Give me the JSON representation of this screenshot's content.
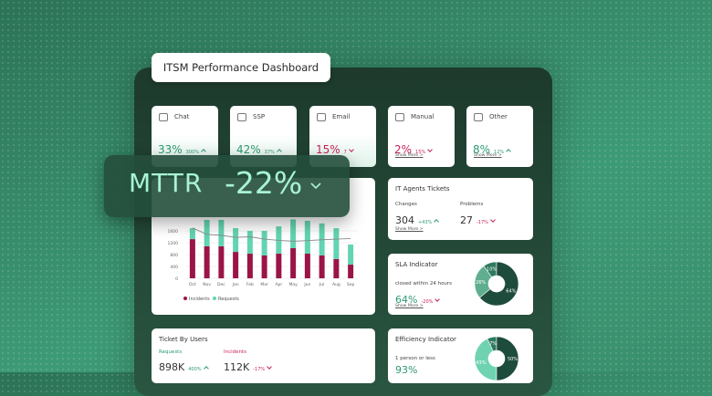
{
  "header": {
    "title": "ITSM Performance Dashboard"
  },
  "channels": [
    {
      "label": "Chat",
      "value": "33%",
      "delta": "300%",
      "trend": "up"
    },
    {
      "label": "SSP",
      "value": "42%",
      "delta": "37%",
      "trend": "up"
    },
    {
      "label": "Email",
      "value": "15%",
      "delta": "7",
      "trend": "down"
    },
    {
      "label": "Manual",
      "value": "2%",
      "delta": "15%",
      "trend": "down",
      "more": "Show More >"
    },
    {
      "label": "Other",
      "value": "8%",
      "delta": "12%",
      "trend": "up",
      "more": "Show More >"
    }
  ],
  "mttr": {
    "label": "MTTR",
    "value": "-22%"
  },
  "it_agents": {
    "title": "IT Agents Tickets",
    "items": [
      {
        "label": "Changes",
        "value": "304",
        "delta": "+43%",
        "trend": "up"
      },
      {
        "label": "Problems",
        "value": "27",
        "delta": "-17%",
        "trend": "down"
      }
    ],
    "more": "Show More >"
  },
  "sla": {
    "title": "SLA Indicator",
    "label": "closed within 24 hours",
    "value": "64%",
    "delta": "-20%",
    "trend": "down",
    "more": "Show More >"
  },
  "efficiency": {
    "title": "Efficiency Indicator",
    "label": "1 person or less",
    "value": "93%"
  },
  "ticket_by_users": {
    "title": "Ticket By Users",
    "items": [
      {
        "label": "Requests",
        "value": "898K",
        "delta": "400%",
        "trend": "up"
      },
      {
        "label": "Incidents",
        "value": "112K",
        "delta": "-17%",
        "trend": "down"
      }
    ]
  },
  "chart_data": [
    {
      "type": "bar",
      "stacked": true,
      "categories": [
        "Oct",
        "Nov",
        "Dec",
        "Jan",
        "Feb",
        "Mar",
        "Apr",
        "May",
        "Jun",
        "Jul",
        "Aug",
        "Sep"
      ],
      "series": [
        {
          "name": "Incidents",
          "color": "#9b1446",
          "values": [
            1320,
            1080,
            1080,
            890,
            830,
            770,
            830,
            1015,
            830,
            770,
            650,
            460
          ]
        },
        {
          "name": "Requests",
          "color": "#62d4b1",
          "values": [
            370,
            890,
            890,
            800,
            770,
            830,
            920,
            970,
            1110,
            1080,
            1040,
            680
          ]
        }
      ],
      "line": {
        "color": "#8c8c8c",
        "values": [
          1700,
          1480,
          1450,
          1380,
          1400,
          1320,
          1280,
          1250,
          1270,
          1300,
          1320,
          1340
        ]
      },
      "ylim": [
        0,
        2000
      ],
      "yticks": [
        0,
        400,
        800,
        1200,
        1600
      ],
      "grid": true
    },
    {
      "type": "pie",
      "values": [
        10,
        26,
        64
      ],
      "value_labels": [
        "10%",
        "26%",
        "64%"
      ],
      "colors": [
        "#2f7a5e",
        "#5fae8f",
        "#1d4b3c"
      ]
    },
    {
      "type": "pie",
      "values": [
        7,
        43,
        50
      ],
      "value_labels": [
        "7%",
        "43%",
        "50%"
      ],
      "colors": [
        "#2f7a5e",
        "#6fd3b2",
        "#1d4b3c"
      ]
    }
  ]
}
